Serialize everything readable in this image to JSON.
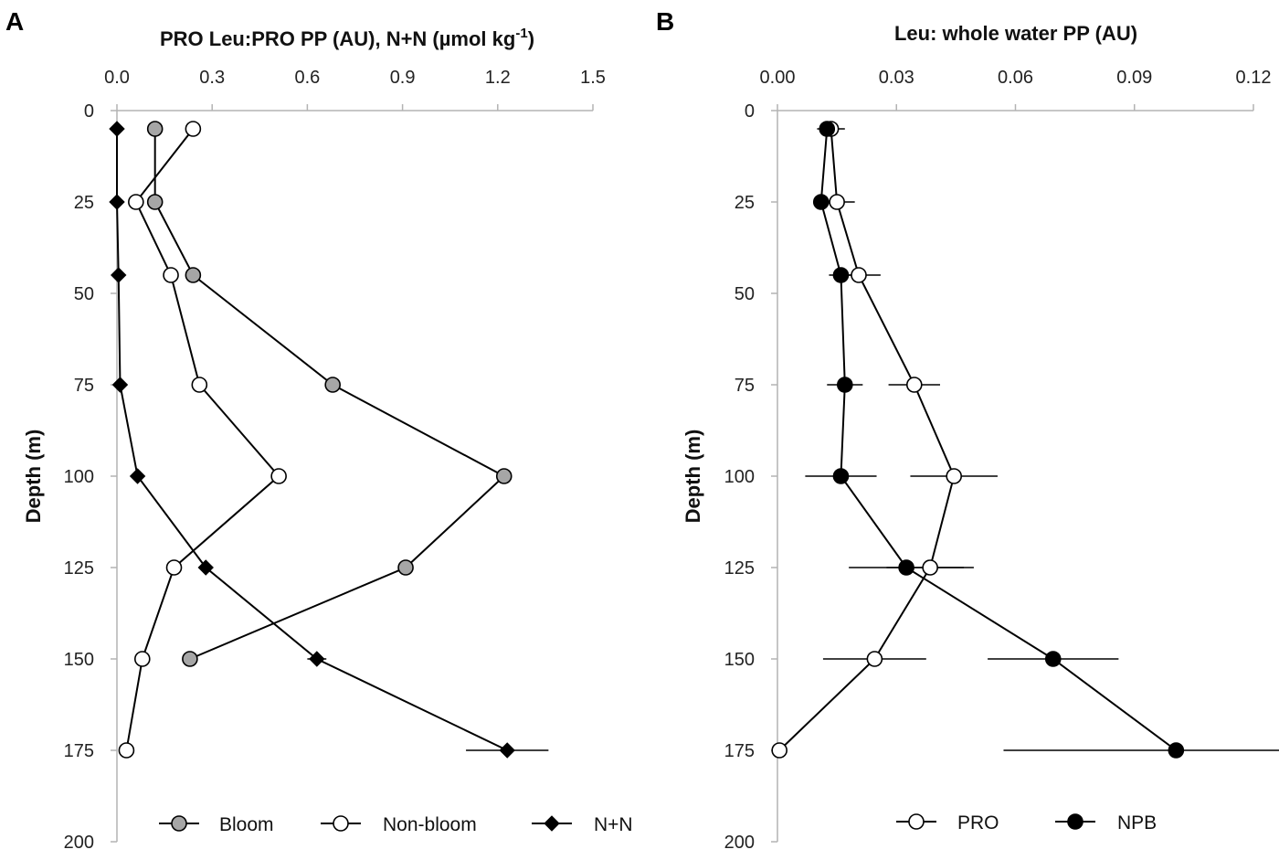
{
  "colors": {
    "axis": "#b3b3b3",
    "line": "#000000",
    "bloom_fill": "#a6a6a6",
    "open_fill": "#ffffff",
    "filled": "#000000"
  },
  "chart_data": [
    {
      "panel_label": "A",
      "type": "line",
      "title": "PRO Leu:PRO PP (AU), N+N (µmol kg",
      "title_superscript": "-1",
      "title_close": ")",
      "xlabel": "PRO Leu:PRO PP (AU), N+N (µmol kg-1)",
      "ylabel": "Depth (m)",
      "xlim": [
        0,
        1.5
      ],
      "ylim": [
        0,
        200
      ],
      "x_ticks": [
        "0.0",
        "0.3",
        "0.6",
        "0.9",
        "1.2",
        "1.5"
      ],
      "y_ticks": [
        "0",
        "25",
        "50",
        "75",
        "100",
        "125",
        "150",
        "175",
        "200"
      ],
      "y_inverted": true,
      "x_axis_position": "top",
      "legend_position": "bottom",
      "series": [
        {
          "name": "Bloom",
          "marker": "circle-gray",
          "points": [
            {
              "x": 0.12,
              "depth": 5
            },
            {
              "x": 0.12,
              "depth": 25
            },
            {
              "x": 0.24,
              "depth": 45
            },
            {
              "x": 0.68,
              "depth": 75
            },
            {
              "x": 1.22,
              "depth": 100
            },
            {
              "x": 0.91,
              "depth": 125
            },
            {
              "x": 0.23,
              "depth": 150
            }
          ]
        },
        {
          "name": "Non-bloom",
          "marker": "circle-open",
          "points": [
            {
              "x": 0.24,
              "depth": 5
            },
            {
              "x": 0.06,
              "depth": 25
            },
            {
              "x": 0.17,
              "depth": 45
            },
            {
              "x": 0.26,
              "depth": 75
            },
            {
              "x": 0.51,
              "depth": 100
            },
            {
              "x": 0.18,
              "depth": 125
            },
            {
              "x": 0.08,
              "depth": 150
            },
            {
              "x": 0.03,
              "depth": 175
            }
          ]
        },
        {
          "name": "N+N",
          "marker": "diamond-filled",
          "points": [
            {
              "x": 0.0,
              "depth": 5
            },
            {
              "x": 0.0,
              "depth": 25
            },
            {
              "x": 0.005,
              "depth": 45
            },
            {
              "x": 0.01,
              "depth": 75
            },
            {
              "x": 0.065,
              "depth": 100
            },
            {
              "x": 0.28,
              "depth": 125,
              "err": 0.01
            },
            {
              "x": 0.63,
              "depth": 150,
              "err": 0.03
            },
            {
              "x": 1.23,
              "depth": 175,
              "err": 0.13
            }
          ]
        }
      ]
    },
    {
      "panel_label": "B",
      "type": "line",
      "title": "Leu: whole water PP (AU)",
      "xlabel": "Leu: whole water PP (AU)",
      "ylabel": "Depth (m)",
      "xlim": [
        0,
        0.12
      ],
      "ylim": [
        0,
        200
      ],
      "x_ticks": [
        "0.00",
        "0.03",
        "0.06",
        "0.09",
        "0.12"
      ],
      "y_ticks": [
        "0",
        "25",
        "50",
        "75",
        "100",
        "125",
        "150",
        "175",
        "200"
      ],
      "y_inverted": true,
      "x_axis_position": "top",
      "legend_position": "bottom",
      "series": [
        {
          "name": "PRO",
          "marker": "circle-open",
          "points": [
            {
              "x": 0.0135,
              "depth": 5,
              "err": 0.0035
            },
            {
              "x": 0.015,
              "depth": 25,
              "err": 0.0045
            },
            {
              "x": 0.0205,
              "depth": 45,
              "err": 0.0055
            },
            {
              "x": 0.0345,
              "depth": 75,
              "err": 0.0065
            },
            {
              "x": 0.0445,
              "depth": 100,
              "err": 0.011
            },
            {
              "x": 0.0385,
              "depth": 125,
              "err": 0.011
            },
            {
              "x": 0.0245,
              "depth": 150,
              "err": 0.013
            },
            {
              "x": 0.0005,
              "depth": 175
            }
          ]
        },
        {
          "name": "NPB",
          "marker": "circle-filled",
          "points": [
            {
              "x": 0.0125,
              "depth": 5
            },
            {
              "x": 0.011,
              "depth": 25
            },
            {
              "x": 0.016,
              "depth": 45,
              "err": 0.003
            },
            {
              "x": 0.017,
              "depth": 75,
              "err": 0.0045
            },
            {
              "x": 0.016,
              "depth": 100,
              "err": 0.009
            },
            {
              "x": 0.0325,
              "depth": 125,
              "err": 0.0145
            },
            {
              "x": 0.0695,
              "depth": 150,
              "err": 0.0165
            },
            {
              "x": 0.1005,
              "depth": 175,
              "err": 0.0435
            }
          ]
        }
      ]
    }
  ]
}
